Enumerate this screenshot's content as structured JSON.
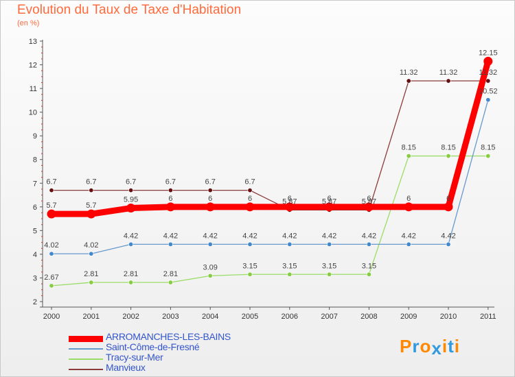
{
  "chart_data": {
    "type": "line",
    "title": "Evolution du Taux de Taxe d'Habitation",
    "subtitle": "(en %)",
    "xlabel": "",
    "ylabel": "",
    "ylim": [
      2,
      13
    ],
    "yticks": [
      "2",
      "3",
      "4",
      "5",
      "6",
      "7",
      "8",
      "9",
      "10",
      "11",
      "12",
      "13"
    ],
    "x": [
      "2000",
      "2001",
      "2002",
      "2003",
      "2004",
      "2005",
      "2006",
      "2007",
      "2008",
      "2009",
      "2010",
      "2011"
    ],
    "series": [
      {
        "name": "Tracy-sur-Mer",
        "color": "#99dd66",
        "dot": "#88cc44",
        "values": [
          2.67,
          2.81,
          2.81,
          2.81,
          3.09,
          3.15,
          3.15,
          3.15,
          3.15,
          8.15,
          8.15,
          8.15
        ],
        "labels": [
          "2.67",
          "2.81",
          "2.81",
          "2.81",
          "3.09",
          "3.15",
          "3.15",
          "3.15",
          "3.15",
          "8.15",
          "8.15",
          "8.15"
        ]
      },
      {
        "name": "Saint-Côme-de-Fresné",
        "color": "#6699cc",
        "dot": "#4488cc",
        "values": [
          4.02,
          4.02,
          4.42,
          4.42,
          4.42,
          4.42,
          4.42,
          4.42,
          4.42,
          4.42,
          4.42,
          10.52
        ],
        "labels": [
          "4.02",
          "4.02",
          "4.42",
          "4.42",
          "4.42",
          "4.42",
          "4.42",
          "4.42",
          "4.42",
          "4.42",
          "4.42",
          "10.52"
        ]
      },
      {
        "name": "Manvieux",
        "color": "#8b3a3a",
        "dot": "#661111",
        "values": [
          6.7,
          6.7,
          6.7,
          6.7,
          6.7,
          6.7,
          5.87,
          5.87,
          5.87,
          11.32,
          11.32,
          11.32
        ],
        "labels": [
          "6.7",
          "6.7",
          "6.7",
          "6.7",
          "6.7",
          "6.7",
          "5.87",
          "5.87",
          "5.87",
          "11.32",
          "11.32",
          "11.32"
        ]
      },
      {
        "name": "ARROMANCHES-LES-BAINS",
        "color": "#ff0000",
        "dot": "#ff0000",
        "values": [
          5.7,
          5.7,
          5.95,
          6,
          6,
          6,
          6,
          6,
          6,
          6,
          6,
          12.15
        ],
        "labels": [
          "5.7",
          "5.7",
          "5.95",
          "6",
          "6",
          "6",
          "6",
          "6",
          "6",
          "6",
          "6",
          "12.15"
        ]
      }
    ],
    "legend": [
      {
        "name": "ARROMANCHES-LES-BAINS",
        "color": "#ff0000",
        "text_color": "#3355cc"
      },
      {
        "name": "Saint-Côme-de-Fresné",
        "color": "#6699cc",
        "text_color": "#3355cc"
      },
      {
        "name": "Tracy-sur-Mer",
        "color": "#99dd66",
        "text_color": "#3355cc"
      },
      {
        "name": "Manvieux",
        "color": "#8b3a3a",
        "text_color": "#3355cc"
      }
    ],
    "grid": false,
    "legend_position": "bottom-left"
  },
  "logo": {
    "text": "Proxiti",
    "letters": [
      "P",
      "r",
      "o",
      "x",
      "i",
      "t",
      "i"
    ],
    "colors": [
      "#ff8800",
      "#3399dd",
      "#ff8800",
      "#3399dd",
      "#ff8800",
      "#3399dd",
      "#ff8800"
    ]
  }
}
